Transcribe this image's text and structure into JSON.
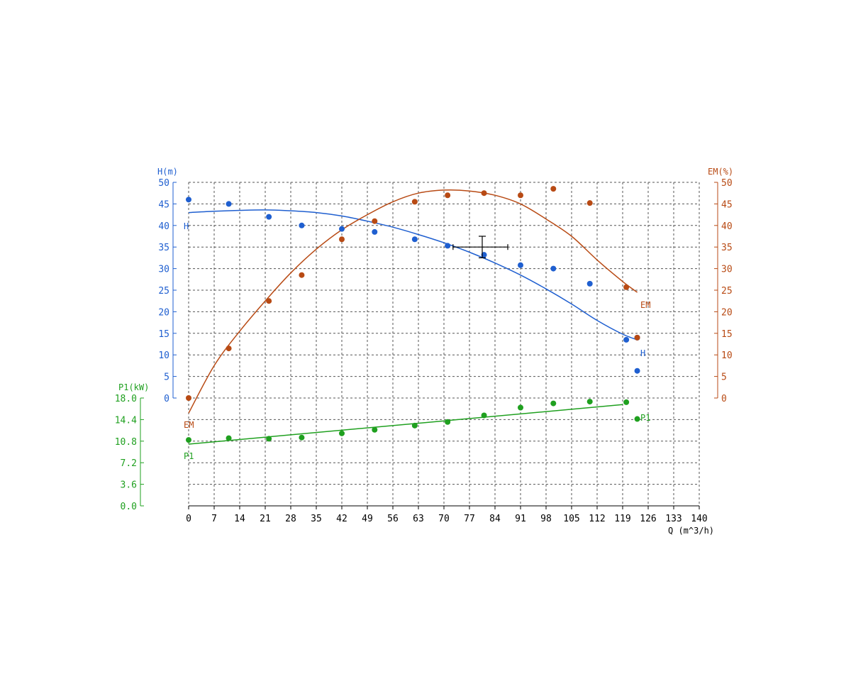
{
  "chart_data": {
    "type": "line",
    "x": {
      "label": "Q (m^3/h)",
      "ticks": [
        "0",
        "7",
        "14",
        "21",
        "28",
        "35",
        "42",
        "49",
        "56",
        "63",
        "70",
        "77",
        "84",
        "91",
        "98",
        "105",
        "112",
        "119",
        "126",
        "133",
        "140"
      ],
      "range": [
        0,
        140
      ]
    },
    "axes": {
      "H": {
        "label": "H(m)",
        "ticks": [
          "0",
          "5",
          "10",
          "15",
          "20",
          "25",
          "30",
          "35",
          "40",
          "45",
          "50"
        ],
        "range": [
          0,
          50
        ],
        "color": "#1f5fd0"
      },
      "EM": {
        "label": "EM(%)",
        "ticks": [
          "0",
          "5",
          "10",
          "15",
          "20",
          "25",
          "30",
          "35",
          "40",
          "45",
          "50"
        ],
        "range": [
          0,
          50
        ],
        "color": "#b84a14"
      },
      "P1": {
        "label": "P1(kW)",
        "ticks": [
          "0.0",
          "3.6",
          "7.2",
          "10.8",
          "14.4",
          "18.0"
        ],
        "range": [
          0,
          18
        ],
        "color": "#1fa01f"
      }
    },
    "series": [
      {
        "name": "H",
        "axis": "H",
        "curve_x": [
          0,
          7,
          14,
          21,
          28,
          35,
          42,
          49,
          56,
          63,
          70,
          77,
          84,
          91,
          98,
          105,
          112,
          119,
          123
        ],
        "curve_y": [
          43,
          43.3,
          43.5,
          43.6,
          43.4,
          43.0,
          42.2,
          41.0,
          39.6,
          37.9,
          36.0,
          33.8,
          31.3,
          28.5,
          25.3,
          21.8,
          18.0,
          14.8,
          13.5
        ],
        "points_x": [
          0,
          11,
          22,
          31,
          42,
          51,
          62,
          71,
          81,
          91,
          100,
          110,
          120,
          123,
          123
        ],
        "points_y": [
          46,
          45,
          42,
          40,
          39.2,
          38.5,
          36.8,
          35.3,
          33.2,
          30.8,
          30.0,
          26.5,
          13.5,
          14.0,
          6.3
        ]
      },
      {
        "name": "EM",
        "axis": "EM",
        "curve_x": [
          0,
          7,
          14,
          21,
          28,
          35,
          42,
          49,
          56,
          63,
          70,
          77,
          84,
          91,
          98,
          105,
          112,
          119,
          123
        ],
        "curve_y": [
          -3.5,
          7.5,
          15.5,
          22.5,
          29.0,
          34.5,
          39.0,
          42.5,
          45.5,
          47.5,
          48.2,
          48.0,
          47.0,
          45.0,
          41.5,
          37.5,
          32.0,
          27.0,
          24.5
        ],
        "points_x": [
          0,
          11,
          22,
          31,
          42,
          51,
          62,
          71,
          81,
          91,
          100,
          110,
          120,
          123
        ],
        "points_y": [
          0,
          11.5,
          22.5,
          28.5,
          36.8,
          41.0,
          45.5,
          47.0,
          47.5,
          47.0,
          48.5,
          45.2,
          25.7,
          14.0
        ]
      },
      {
        "name": "P1",
        "axis": "P1",
        "curve_x": [
          0,
          119
        ],
        "curve_y": [
          10.3,
          16.9
        ],
        "points_x": [
          0,
          11,
          22,
          31,
          42,
          51,
          62,
          71,
          81,
          91,
          100,
          110,
          120,
          123
        ],
        "points_y": [
          11.0,
          11.3,
          11.2,
          11.4,
          12.1,
          12.7,
          13.4,
          14.0,
          15.1,
          16.4,
          17.1,
          17.4,
          17.3,
          14.5
        ]
      }
    ],
    "operating_point": {
      "x": 80.5,
      "y": 35,
      "x_err": [
        72.5,
        87.5
      ],
      "y_err": [
        32.5,
        37.5
      ]
    },
    "grid": true
  }
}
